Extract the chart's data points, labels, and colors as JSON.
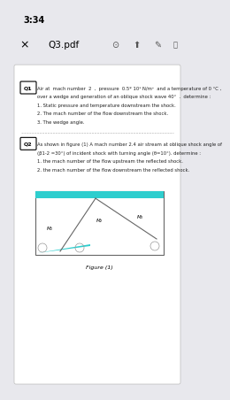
{
  "bg_color": "#e8e8ed",
  "page_bg": "#ffffff",
  "status_bar": "3:34",
  "title_bar": "Q3.pdf",
  "q1_label": "Q1",
  "q2_label": "Q2",
  "q1_line1": "Air at  mach number  2  ,  pressure  0.5* 10⁵ N/m²  and a temperature of 0 °C ,",
  "q1_line2": "over a wedge and generation of an oblique shock wave 40°  .  determine :",
  "q1_line3": "1. Static pressure and temperature downstream the shock.",
  "q1_line4": "2. The mach number of the flow downstream the shock.",
  "q1_line5": "3. The wedge angle.",
  "q2_line1": "As shown in figure (1) A mach number 2.4 air stream at oblique shock angle of",
  "q2_line2": "(β1-2 =30°) of incident shock with turning angle (θ=10°). determine :",
  "q2_line3": "1. the mach number of the flow upstream the reflected shock.",
  "q2_line4": "2. the mach number of the flow downstream the reflected shock.",
  "figure_label": "Figure (1)",
  "m1_label": "M₁",
  "m2_label": "M₂",
  "m3_label": "M₃",
  "cyan_color": "#2ecece",
  "shock_color": "#666666",
  "text_color": "#222222"
}
